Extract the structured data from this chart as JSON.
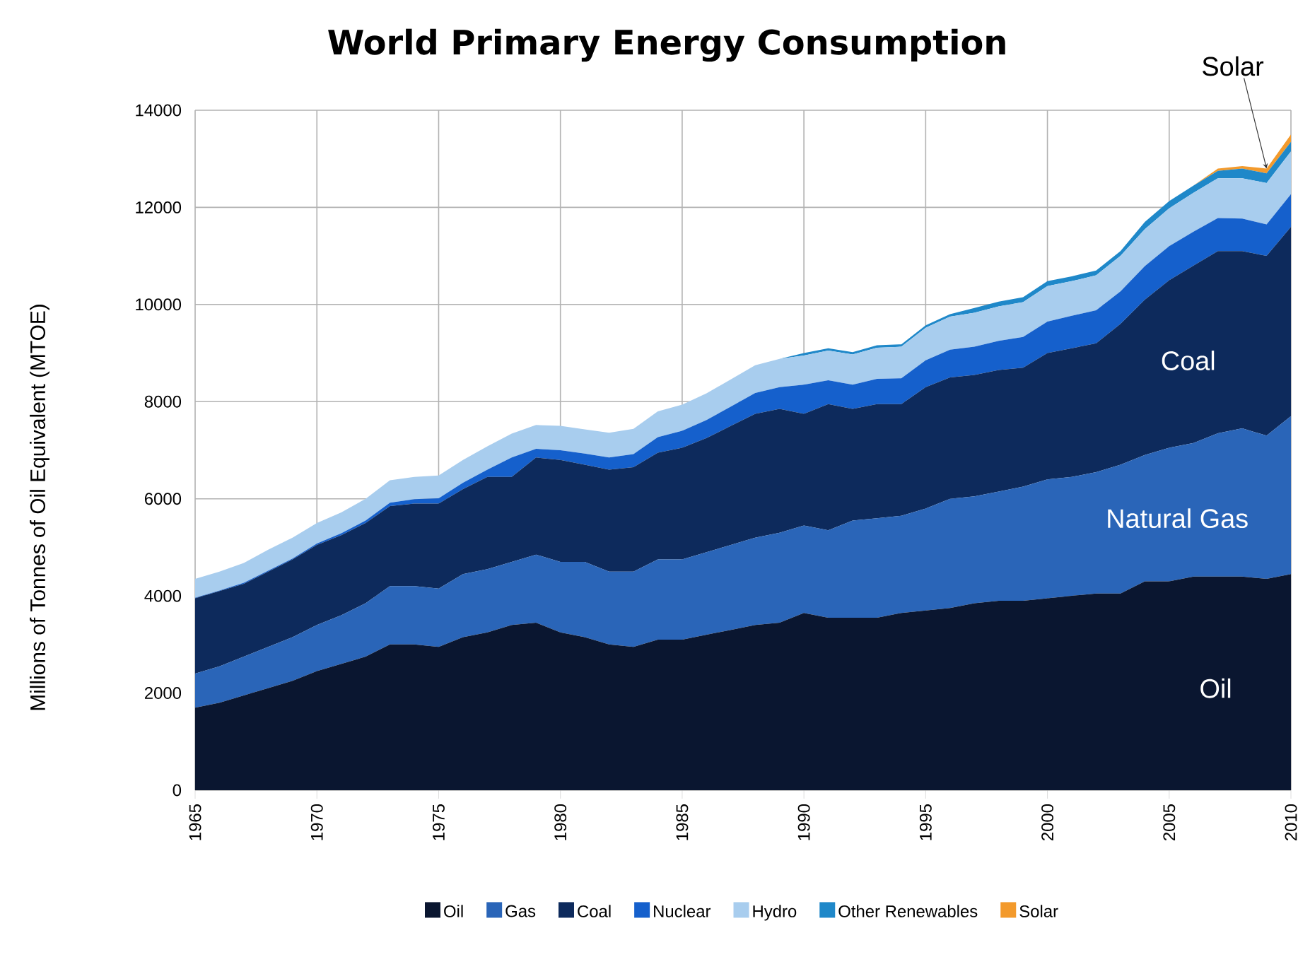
{
  "chart_data": {
    "type": "area",
    "stacked": true,
    "title": "World Primary Energy Consumption",
    "ylabel": "Millions of Tonnes of Oil Equivalent (MTOE)",
    "x": [
      1965,
      1966,
      1967,
      1968,
      1969,
      1970,
      1971,
      1972,
      1973,
      1974,
      1975,
      1976,
      1977,
      1978,
      1979,
      1980,
      1981,
      1982,
      1983,
      1984,
      1985,
      1986,
      1987,
      1988,
      1989,
      1990,
      1991,
      1992,
      1993,
      1994,
      1995,
      1996,
      1997,
      1998,
      1999,
      2000,
      2001,
      2002,
      2003,
      2004,
      2005,
      2006,
      2007,
      2008,
      2009,
      2010
    ],
    "series": [
      {
        "name": "Oil",
        "color": "#0a1630",
        "values": [
          1700,
          1800,
          1950,
          2100,
          2250,
          2450,
          2600,
          2750,
          3000,
          3000,
          2950,
          3150,
          3250,
          3400,
          3450,
          3250,
          3150,
          3000,
          2950,
          3100,
          3100,
          3200,
          3300,
          3400,
          3450,
          3650,
          3550,
          3550,
          3550,
          3650,
          3700,
          3750,
          3850,
          3900,
          3900,
          3950,
          4000,
          4050,
          4050,
          4300,
          4300,
          4400,
          4400,
          4400,
          4350,
          4450
        ]
      },
      {
        "name": "Gas",
        "color": "#2a65b8",
        "values": [
          700,
          750,
          800,
          850,
          900,
          950,
          1000,
          1100,
          1200,
          1200,
          1200,
          1300,
          1300,
          1300,
          1400,
          1450,
          1550,
          1500,
          1550,
          1650,
          1650,
          1700,
          1750,
          1800,
          1850,
          1800,
          1800,
          2000,
          2050,
          2000,
          2100,
          2250,
          2200,
          2250,
          2350,
          2450,
          2450,
          2500,
          2650,
          2600,
          2750,
          2750,
          2950,
          3050,
          2950,
          3250
        ]
      },
      {
        "name": "Coal",
        "color": "#0d2a5c",
        "values": [
          1550,
          1550,
          1500,
          1550,
          1600,
          1650,
          1650,
          1650,
          1650,
          1700,
          1750,
          1750,
          1900,
          1750,
          2000,
          2100,
          2000,
          2100,
          2150,
          2200,
          2300,
          2350,
          2450,
          2550,
          2550,
          2300,
          2600,
          2300,
          2350,
          2300,
          2500,
          2500,
          2500,
          2500,
          2450,
          2600,
          2650,
          2650,
          2900,
          3200,
          3450,
          3650,
          3750,
          3650,
          3700,
          3900
        ]
      },
      {
        "name": "Nuclear",
        "color": "#1560cc",
        "values": [
          10,
          10,
          20,
          20,
          20,
          30,
          40,
          50,
          70,
          90,
          110,
          130,
          150,
          400,
          180,
          200,
          230,
          250,
          270,
          320,
          350,
          370,
          400,
          430,
          450,
          600,
          490,
          500,
          520,
          530,
          550,
          570,
          580,
          600,
          630,
          650,
          670,
          680,
          670,
          690,
          700,
          700,
          680,
          670,
          650,
          670
        ]
      },
      {
        "name": "Hydro",
        "color": "#a8cdee",
        "values": [
          390,
          390,
          410,
          430,
          430,
          420,
          430,
          450,
          460,
          460,
          470,
          470,
          480,
          490,
          490,
          500,
          500,
          510,
          520,
          530,
          540,
          550,
          560,
          570,
          580,
          600,
          610,
          620,
          640,
          650,
          670,
          680,
          700,
          710,
          720,
          730,
          710,
          720,
          730,
          760,
          780,
          800,
          820,
          830,
          850,
          880
        ]
      },
      {
        "name": "Other Renewables",
        "color": "#1f88c9",
        "values": [
          0,
          0,
          0,
          0,
          0,
          0,
          0,
          0,
          0,
          0,
          0,
          0,
          0,
          0,
          0,
          0,
          0,
          0,
          0,
          0,
          0,
          0,
          0,
          0,
          0,
          50,
          50,
          50,
          50,
          50,
          50,
          50,
          100,
          100,
          100,
          100,
          100,
          100,
          100,
          150,
          150,
          150,
          150,
          200,
          200,
          200
        ]
      },
      {
        "name": "Solar",
        "color": "#f39a2c",
        "values": [
          0,
          0,
          0,
          0,
          0,
          0,
          0,
          0,
          0,
          0,
          0,
          0,
          0,
          0,
          0,
          0,
          0,
          0,
          0,
          0,
          0,
          0,
          0,
          0,
          0,
          0,
          0,
          0,
          0,
          0,
          0,
          0,
          0,
          0,
          0,
          0,
          0,
          0,
          0,
          0,
          0,
          0,
          50,
          50,
          100,
          150
        ]
      }
    ],
    "xlim": [
      1965,
      2010
    ],
    "xticks": [
      1965,
      1970,
      1975,
      1980,
      1985,
      1990,
      1995,
      2000,
      2005,
      2010
    ],
    "ylim": [
      0,
      14000
    ],
    "yticks": [
      0,
      2000,
      4000,
      6000,
      8000,
      10000,
      12000,
      14000
    ],
    "grid": true,
    "legend": "bottom",
    "annotations": [
      "Coal",
      "Natural Gas",
      "Oil",
      {
        "text": "Solar",
        "x": 2009,
        "y": 12800
      }
    ]
  }
}
